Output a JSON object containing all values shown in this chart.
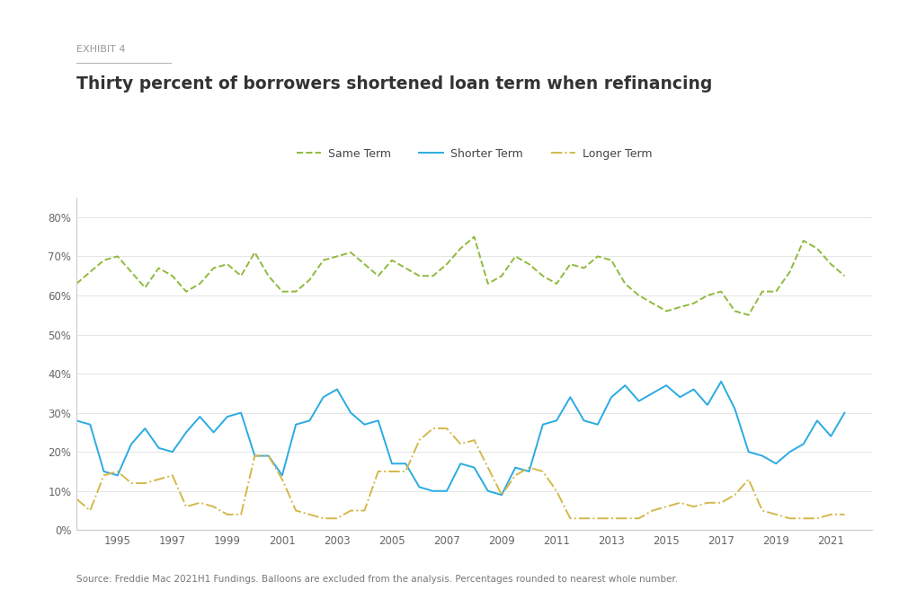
{
  "exhibit_label": "EXHIBIT 4",
  "title": "Thirty percent of borrowers shortened loan term when refinancing",
  "source": "Source: Freddie Mac 2021H1 Fundings. Balloons are excluded from the analysis. Percentages rounded to nearest whole number.",
  "legend": [
    "Same Term",
    "Shorter Term",
    "Longer Term"
  ],
  "line_colors": [
    "#8fba3c",
    "#29abe2",
    "#d4b84a"
  ],
  "background_color": "#ffffff",
  "ylim": [
    0,
    0.85
  ],
  "yticks": [
    0.0,
    0.1,
    0.2,
    0.3,
    0.4,
    0.5,
    0.6,
    0.7,
    0.8
  ],
  "ytick_labels": [
    "0%",
    "10%",
    "20%",
    "30%",
    "40%",
    "50%",
    "60%",
    "70%",
    "80%"
  ],
  "xlim": [
    1993.5,
    2022.5
  ],
  "xticks": [
    1995,
    1997,
    1999,
    2001,
    2003,
    2005,
    2007,
    2009,
    2011,
    2013,
    2015,
    2017,
    2019,
    2021
  ],
  "same_term_x": [
    1993.5,
    1994.0,
    1994.5,
    1995.0,
    1995.5,
    1996.0,
    1996.5,
    1997.0,
    1997.5,
    1998.0,
    1998.5,
    1999.0,
    1999.5,
    2000.0,
    2000.5,
    2001.0,
    2001.5,
    2002.0,
    2002.5,
    2003.0,
    2003.5,
    2004.0,
    2004.5,
    2005.0,
    2005.5,
    2006.0,
    2006.5,
    2007.0,
    2007.5,
    2008.0,
    2008.5,
    2009.0,
    2009.5,
    2010.0,
    2010.5,
    2011.0,
    2011.5,
    2012.0,
    2012.5,
    2013.0,
    2013.5,
    2014.0,
    2014.5,
    2015.0,
    2015.5,
    2016.0,
    2016.5,
    2017.0,
    2017.5,
    2018.0,
    2018.5,
    2019.0,
    2019.5,
    2020.0,
    2020.5,
    2021.0,
    2021.5
  ],
  "same_term_y": [
    0.63,
    0.66,
    0.69,
    0.7,
    0.66,
    0.62,
    0.67,
    0.65,
    0.61,
    0.63,
    0.67,
    0.68,
    0.65,
    0.71,
    0.65,
    0.61,
    0.61,
    0.64,
    0.69,
    0.7,
    0.71,
    0.68,
    0.65,
    0.69,
    0.67,
    0.65,
    0.65,
    0.68,
    0.72,
    0.75,
    0.63,
    0.65,
    0.7,
    0.68,
    0.65,
    0.63,
    0.68,
    0.67,
    0.7,
    0.69,
    0.63,
    0.6,
    0.58,
    0.56,
    0.57,
    0.58,
    0.6,
    0.61,
    0.56,
    0.55,
    0.61,
    0.61,
    0.66,
    0.74,
    0.72,
    0.68,
    0.65
  ],
  "shorter_term_x": [
    1993.5,
    1994.0,
    1994.5,
    1995.0,
    1995.5,
    1996.0,
    1996.5,
    1997.0,
    1997.5,
    1998.0,
    1998.5,
    1999.0,
    1999.5,
    2000.0,
    2000.5,
    2001.0,
    2001.5,
    2002.0,
    2002.5,
    2003.0,
    2003.5,
    2004.0,
    2004.5,
    2005.0,
    2005.5,
    2006.0,
    2006.5,
    2007.0,
    2007.5,
    2008.0,
    2008.5,
    2009.0,
    2009.5,
    2010.0,
    2010.5,
    2011.0,
    2011.5,
    2012.0,
    2012.5,
    2013.0,
    2013.5,
    2014.0,
    2014.5,
    2015.0,
    2015.5,
    2016.0,
    2016.5,
    2017.0,
    2017.5,
    2018.0,
    2018.5,
    2019.0,
    2019.5,
    2020.0,
    2020.5,
    2021.0,
    2021.5
  ],
  "shorter_term_y": [
    0.28,
    0.27,
    0.15,
    0.14,
    0.22,
    0.26,
    0.21,
    0.2,
    0.25,
    0.29,
    0.25,
    0.29,
    0.3,
    0.19,
    0.19,
    0.14,
    0.27,
    0.28,
    0.34,
    0.36,
    0.3,
    0.27,
    0.28,
    0.17,
    0.17,
    0.11,
    0.1,
    0.1,
    0.17,
    0.16,
    0.1,
    0.09,
    0.16,
    0.15,
    0.27,
    0.28,
    0.34,
    0.28,
    0.27,
    0.34,
    0.37,
    0.33,
    0.35,
    0.37,
    0.34,
    0.36,
    0.32,
    0.38,
    0.31,
    0.2,
    0.19,
    0.17,
    0.2,
    0.22,
    0.28,
    0.24,
    0.3
  ],
  "longer_term_x": [
    1993.5,
    1994.0,
    1994.5,
    1995.0,
    1995.5,
    1996.0,
    1996.5,
    1997.0,
    1997.5,
    1998.0,
    1998.5,
    1999.0,
    1999.5,
    2000.0,
    2000.5,
    2001.0,
    2001.5,
    2002.0,
    2002.5,
    2003.0,
    2003.5,
    2004.0,
    2004.5,
    2005.0,
    2005.5,
    2006.0,
    2006.5,
    2007.0,
    2007.5,
    2008.0,
    2008.5,
    2009.0,
    2009.5,
    2010.0,
    2010.5,
    2011.0,
    2011.5,
    2012.0,
    2012.5,
    2013.0,
    2013.5,
    2014.0,
    2014.5,
    2015.0,
    2015.5,
    2016.0,
    2016.5,
    2017.0,
    2017.5,
    2018.0,
    2018.5,
    2019.0,
    2019.5,
    2020.0,
    2020.5,
    2021.0,
    2021.5
  ],
  "longer_term_y": [
    0.08,
    0.05,
    0.14,
    0.15,
    0.12,
    0.12,
    0.13,
    0.14,
    0.06,
    0.07,
    0.06,
    0.04,
    0.04,
    0.19,
    0.19,
    0.13,
    0.05,
    0.04,
    0.03,
    0.03,
    0.05,
    0.05,
    0.15,
    0.15,
    0.15,
    0.23,
    0.26,
    0.26,
    0.22,
    0.23,
    0.16,
    0.09,
    0.14,
    0.16,
    0.15,
    0.1,
    0.03,
    0.03,
    0.03,
    0.03,
    0.03,
    0.03,
    0.05,
    0.06,
    0.07,
    0.06,
    0.07,
    0.07,
    0.09,
    0.13,
    0.05,
    0.04,
    0.03,
    0.03,
    0.03,
    0.04,
    0.04
  ]
}
